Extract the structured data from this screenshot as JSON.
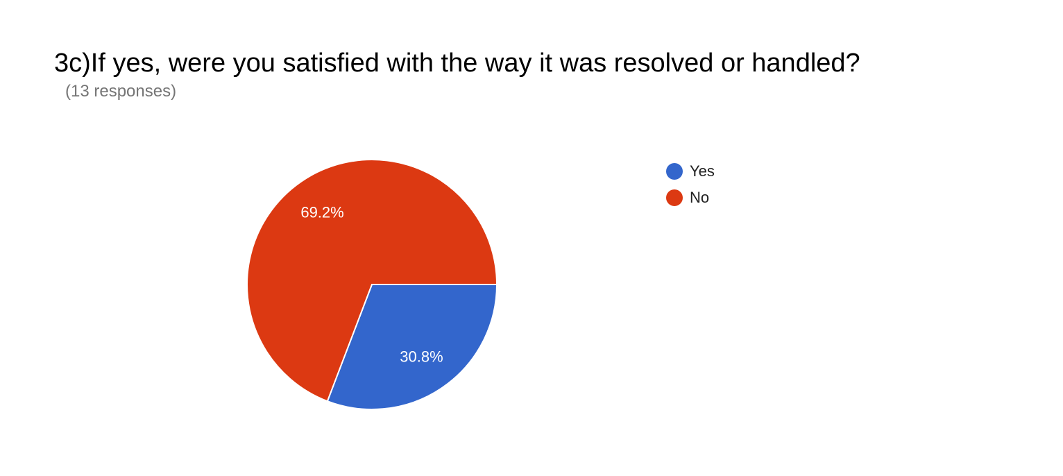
{
  "chart_data": {
    "type": "pie",
    "title": "3c)If yes, were you satisfied with the way it was resolved or handled?",
    "subtitle": "(13 responses)",
    "legend_position": "right",
    "slices": [
      {
        "label": "Yes",
        "value": 30.8,
        "display": "30.8%",
        "color": "#3366CC"
      },
      {
        "label": "No",
        "value": 69.2,
        "display": "69.2%",
        "color": "#DC3912"
      }
    ]
  }
}
